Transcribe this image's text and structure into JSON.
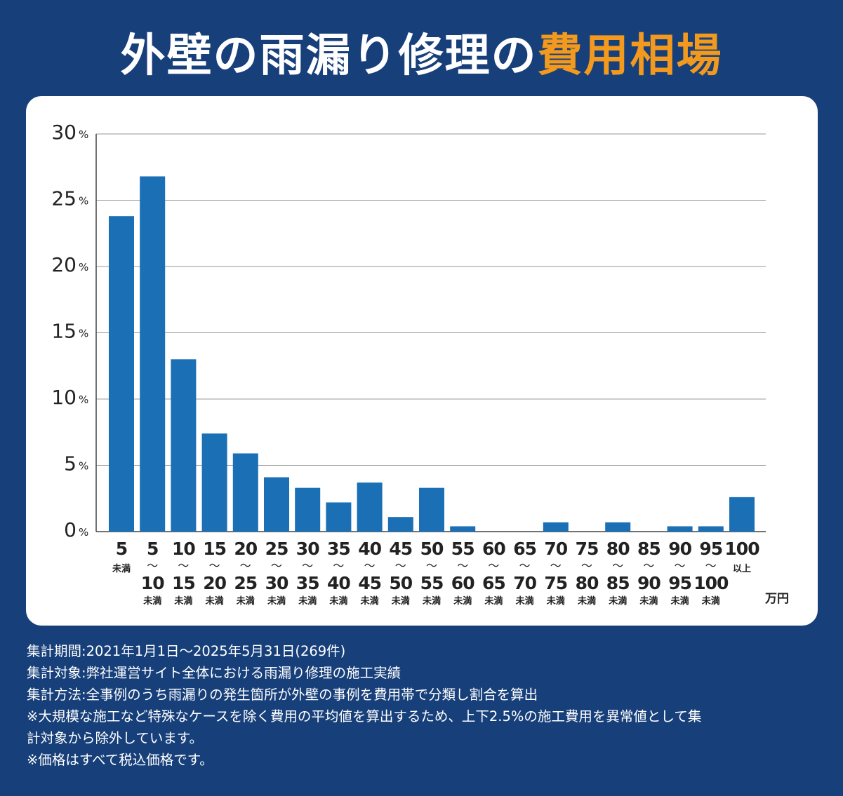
{
  "title": {
    "main": "外壁の雨漏り修理の",
    "accent": "費用相場"
  },
  "colors": {
    "background": "#173f7a",
    "bar": "#1b6fb5",
    "accent": "#f39a1e",
    "card": "#ffffff",
    "text": "#222222"
  },
  "chart_data": {
    "type": "bar",
    "ylim": [
      0,
      30
    ],
    "yticks": [
      0,
      5,
      10,
      15,
      20,
      25,
      30
    ],
    "ytick_unit": "%",
    "grid": true,
    "unit_label": "万円",
    "categories": [
      {
        "top": "5",
        "mid": "",
        "bottom": "",
        "note": "未満"
      },
      {
        "top": "5",
        "mid": "〜",
        "bottom": "10",
        "note": "未満"
      },
      {
        "top": "10",
        "mid": "〜",
        "bottom": "15",
        "note": "未満"
      },
      {
        "top": "15",
        "mid": "〜",
        "bottom": "20",
        "note": "未満"
      },
      {
        "top": "20",
        "mid": "〜",
        "bottom": "25",
        "note": "未満"
      },
      {
        "top": "25",
        "mid": "〜",
        "bottom": "30",
        "note": "未満"
      },
      {
        "top": "30",
        "mid": "〜",
        "bottom": "35",
        "note": "未満"
      },
      {
        "top": "35",
        "mid": "〜",
        "bottom": "40",
        "note": "未満"
      },
      {
        "top": "40",
        "mid": "〜",
        "bottom": "45",
        "note": "未満"
      },
      {
        "top": "45",
        "mid": "〜",
        "bottom": "50",
        "note": "未満"
      },
      {
        "top": "50",
        "mid": "〜",
        "bottom": "55",
        "note": "未満"
      },
      {
        "top": "55",
        "mid": "〜",
        "bottom": "60",
        "note": "未満"
      },
      {
        "top": "60",
        "mid": "〜",
        "bottom": "65",
        "note": "未満"
      },
      {
        "top": "65",
        "mid": "〜",
        "bottom": "70",
        "note": "未満"
      },
      {
        "top": "70",
        "mid": "〜",
        "bottom": "75",
        "note": "未満"
      },
      {
        "top": "75",
        "mid": "〜",
        "bottom": "80",
        "note": "未満"
      },
      {
        "top": "80",
        "mid": "〜",
        "bottom": "85",
        "note": "未満"
      },
      {
        "top": "85",
        "mid": "〜",
        "bottom": "90",
        "note": "未満"
      },
      {
        "top": "90",
        "mid": "〜",
        "bottom": "95",
        "note": "未満"
      },
      {
        "top": "95",
        "mid": "〜",
        "bottom": "100",
        "note": "未満"
      },
      {
        "top": "100",
        "mid": "",
        "bottom": "",
        "note": "以上"
      }
    ],
    "values": [
      23.8,
      26.8,
      13.0,
      7.4,
      5.9,
      4.1,
      3.3,
      2.2,
      3.7,
      1.1,
      3.3,
      0.4,
      0,
      0,
      0.7,
      0,
      0.7,
      0,
      0.4,
      0.4,
      2.6
    ]
  },
  "notes": [
    "集計期間:2021年1月1日〜2025年5月31日(269件)",
    "集計対象:弊社運営サイト全体における雨漏り修理の施工実績",
    "集計方法:全事例のうち雨漏りの発生箇所が外壁の事例を費用帯で分類し割合を算出",
    "※大規模な施工など特殊なケースを除く費用の平均値を算出するため、上下2.5%の施工費用を異常値として集",
    "計対象から除外しています。",
    "※価格はすべて税込価格です。"
  ]
}
